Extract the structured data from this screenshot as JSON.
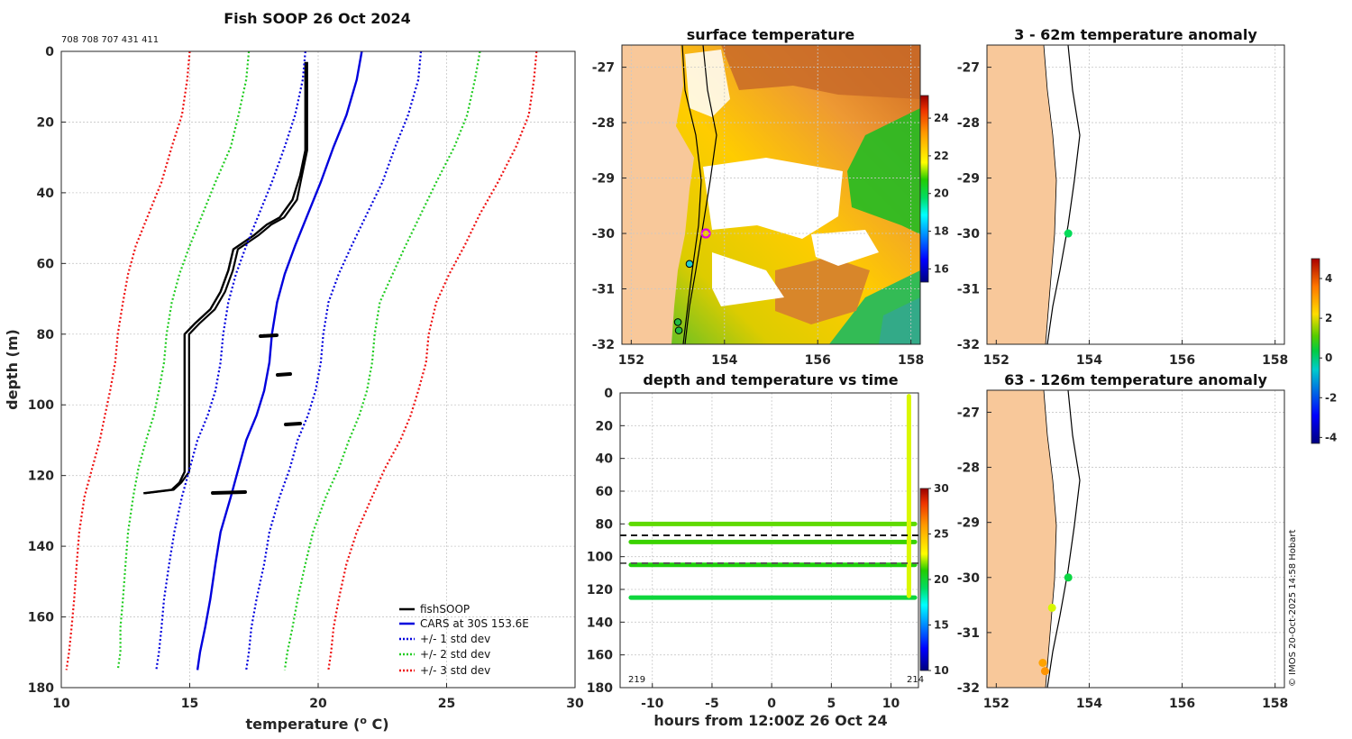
{
  "figure": {
    "main_title": "Fish SOOP 26 Oct 2024",
    "sensor_ids": "708 708 707 431 411",
    "credit": "© IMOS 20-Oct-2025 14:58 Hobart"
  },
  "chart_data": [
    {
      "id": "profile",
      "type": "line",
      "title": "Fish SOOP 26 Oct 2024",
      "xlabel": "temperature (",
      "xlabel_sup": "o",
      "xlabel_tail": " C)",
      "ylabel": "depth (m)",
      "xlim": [
        10,
        30
      ],
      "ylim": [
        0,
        180
      ],
      "xticks": [
        "10",
        "15",
        "20",
        "25",
        "30"
      ],
      "yticks": [
        "0",
        "20",
        "40",
        "60",
        "80",
        "100",
        "120",
        "140",
        "160",
        "180"
      ],
      "series": [
        {
          "name": "fishSOOP",
          "color": "#000000",
          "style": "solid",
          "points": [
            [
              19.5,
              3
            ],
            [
              19.5,
              10
            ],
            [
              19.5,
              20
            ],
            [
              19.5,
              28
            ],
            [
              19.3,
              35
            ],
            [
              19.0,
              42
            ],
            [
              18.5,
              47
            ],
            [
              18.0,
              49
            ],
            [
              17.5,
              52
            ],
            [
              16.7,
              56
            ],
            [
              16.5,
              62
            ],
            [
              16.2,
              68
            ],
            [
              15.8,
              73
            ],
            [
              15.2,
              77
            ],
            [
              14.8,
              80
            ],
            [
              14.8,
              85
            ],
            [
              14.8,
              95
            ],
            [
              14.8,
              110
            ],
            [
              14.8,
              119
            ],
            [
              14.6,
              122
            ],
            [
              14.3,
              124
            ],
            [
              13.2,
              125
            ]
          ]
        },
        {
          "name": "CARS at 30S 153.6E",
          "color": "#0000dd",
          "style": "solid",
          "points": [
            [
              21.7,
              0
            ],
            [
              21.5,
              8
            ],
            [
              21.1,
              18
            ],
            [
              20.6,
              27
            ],
            [
              20.1,
              37
            ],
            [
              19.6,
              46
            ],
            [
              19.1,
              55
            ],
            [
              18.7,
              63
            ],
            [
              18.4,
              71
            ],
            [
              18.2,
              80
            ],
            [
              18.1,
              88
            ],
            [
              17.9,
              96
            ],
            [
              17.6,
              103
            ],
            [
              17.2,
              110
            ],
            [
              16.9,
              118
            ],
            [
              16.6,
              126
            ],
            [
              16.2,
              136
            ],
            [
              16.0,
              145
            ],
            [
              15.8,
              155
            ],
            [
              15.6,
              163
            ],
            [
              15.4,
              170
            ],
            [
              15.3,
              175
            ]
          ]
        },
        {
          "name": "+/- 1 std dev",
          "color": "#0000dd",
          "style": "dotted",
          "points": [
            [
              19.5,
              0
            ],
            [
              19.4,
              8
            ],
            [
              19.1,
              18
            ],
            [
              18.7,
              27
            ],
            [
              18.2,
              37
            ],
            [
              17.7,
              46
            ],
            [
              17.2,
              55
            ],
            [
              16.8,
              63
            ],
            [
              16.5,
              71
            ],
            [
              16.3,
              80
            ],
            [
              16.2,
              88
            ],
            [
              16.0,
              96
            ],
            [
              15.7,
              103
            ],
            [
              15.3,
              110
            ],
            [
              15.0,
              118
            ],
            [
              14.7,
              126
            ],
            [
              14.4,
              136
            ],
            [
              14.2,
              145
            ],
            [
              14.0,
              155
            ],
            [
              13.9,
              163
            ],
            [
              13.8,
              170
            ],
            [
              13.7,
              175
            ]
          ]
        },
        {
          "name": "",
          "color": "#0000dd",
          "style": "dotted",
          "points": [
            [
              24.0,
              0
            ],
            [
              23.9,
              8
            ],
            [
              23.5,
              18
            ],
            [
              23.0,
              27
            ],
            [
              22.5,
              37
            ],
            [
              21.9,
              46
            ],
            [
              21.3,
              55
            ],
            [
              20.8,
              63
            ],
            [
              20.4,
              71
            ],
            [
              20.2,
              80
            ],
            [
              20.1,
              88
            ],
            [
              19.9,
              96
            ],
            [
              19.6,
              103
            ],
            [
              19.2,
              110
            ],
            [
              18.9,
              118
            ],
            [
              18.5,
              126
            ],
            [
              18.1,
              136
            ],
            [
              17.9,
              145
            ],
            [
              17.6,
              155
            ],
            [
              17.4,
              163
            ],
            [
              17.3,
              170
            ],
            [
              17.2,
              175
            ]
          ]
        },
        {
          "name": "+/- 2 std dev",
          "color": "#22cc22",
          "style": "dotted",
          "points": [
            [
              17.3,
              0
            ],
            [
              17.2,
              8
            ],
            [
              16.9,
              18
            ],
            [
              16.6,
              27
            ],
            [
              16.0,
              37
            ],
            [
              15.5,
              46
            ],
            [
              15.0,
              55
            ],
            [
              14.6,
              63
            ],
            [
              14.3,
              71
            ],
            [
              14.1,
              80
            ],
            [
              14.0,
              88
            ],
            [
              13.8,
              96
            ],
            [
              13.6,
              103
            ],
            [
              13.3,
              110
            ],
            [
              13.0,
              118
            ],
            [
              12.8,
              126
            ],
            [
              12.6,
              136
            ],
            [
              12.5,
              145
            ],
            [
              12.4,
              155
            ],
            [
              12.3,
              163
            ],
            [
              12.3,
              170
            ],
            [
              12.2,
              175
            ]
          ]
        },
        {
          "name": "",
          "color": "#22cc22",
          "style": "dotted",
          "points": [
            [
              26.3,
              0
            ],
            [
              26.1,
              8
            ],
            [
              25.8,
              18
            ],
            [
              25.3,
              27
            ],
            [
              24.6,
              37
            ],
            [
              24.0,
              46
            ],
            [
              23.4,
              55
            ],
            [
              22.9,
              63
            ],
            [
              22.4,
              71
            ],
            [
              22.2,
              80
            ],
            [
              22.1,
              88
            ],
            [
              21.9,
              96
            ],
            [
              21.6,
              103
            ],
            [
              21.2,
              110
            ],
            [
              20.8,
              118
            ],
            [
              20.3,
              126
            ],
            [
              19.8,
              136
            ],
            [
              19.5,
              145
            ],
            [
              19.2,
              155
            ],
            [
              19.0,
              163
            ],
            [
              18.8,
              170
            ],
            [
              18.7,
              175
            ]
          ]
        },
        {
          "name": "+/- 3 std dev",
          "color": "#ee1111",
          "style": "dotted",
          "points": [
            [
              15.0,
              0
            ],
            [
              14.9,
              8
            ],
            [
              14.7,
              18
            ],
            [
              14.3,
              27
            ],
            [
              13.9,
              37
            ],
            [
              13.4,
              46
            ],
            [
              12.9,
              55
            ],
            [
              12.6,
              63
            ],
            [
              12.4,
              71
            ],
            [
              12.2,
              80
            ],
            [
              12.1,
              88
            ],
            [
              11.9,
              96
            ],
            [
              11.7,
              103
            ],
            [
              11.5,
              110
            ],
            [
              11.2,
              118
            ],
            [
              10.9,
              126
            ],
            [
              10.7,
              136
            ],
            [
              10.6,
              145
            ],
            [
              10.5,
              155
            ],
            [
              10.4,
              163
            ],
            [
              10.3,
              170
            ],
            [
              10.2,
              175
            ]
          ]
        },
        {
          "name": "",
          "color": "#ee1111",
          "style": "dotted",
          "points": [
            [
              28.5,
              0
            ],
            [
              28.4,
              8
            ],
            [
              28.2,
              18
            ],
            [
              27.7,
              27
            ],
            [
              27.0,
              37
            ],
            [
              26.3,
              46
            ],
            [
              25.7,
              55
            ],
            [
              25.1,
              63
            ],
            [
              24.6,
              71
            ],
            [
              24.3,
              80
            ],
            [
              24.2,
              88
            ],
            [
              23.9,
              96
            ],
            [
              23.6,
              103
            ],
            [
              23.2,
              110
            ],
            [
              22.6,
              118
            ],
            [
              22.1,
              126
            ],
            [
              21.5,
              136
            ],
            [
              21.1,
              145
            ],
            [
              20.8,
              155
            ],
            [
              20.6,
              163
            ],
            [
              20.5,
              170
            ],
            [
              20.4,
              175
            ]
          ]
        }
      ],
      "legend": [
        "fishSOOP",
        "CARS at 30S 153.6E",
        "+/- 1 std dev",
        "+/- 2 std dev",
        "+/- 3 std dev"
      ],
      "legend_position": "bottom-right"
    },
    {
      "id": "sst_map",
      "type": "heatmap",
      "title": "surface temperature",
      "xlim": [
        151.8,
        158.2
      ],
      "ylim": [
        -32,
        -26.6
      ],
      "xticks": [
        "152",
        "154",
        "156",
        "158"
      ],
      "yticks": [
        "-27",
        "-28",
        "-29",
        "-30",
        "-31",
        "-32"
      ],
      "colorbar_ticks": [
        "16",
        "18",
        "20",
        "22",
        "24"
      ],
      "colorbar_range": [
        15.3,
        25.2
      ],
      "stations": [
        [
          153.6,
          -30.0
        ],
        [
          153.25,
          -30.55
        ],
        [
          153.0,
          -31.6
        ],
        [
          153.02,
          -31.75
        ]
      ]
    },
    {
      "id": "time_depth",
      "type": "scatter",
      "title": "depth and temperature vs time",
      "xlabel": "hours from 12:00Z 26 Oct 24",
      "xlim": [
        -12.7,
        12.3
      ],
      "ylim": [
        0,
        180
      ],
      "xticks": [
        "-10",
        "-5",
        "0",
        "5",
        "10"
      ],
      "yticks": [
        "0",
        "20",
        "40",
        "60",
        "80",
        "100",
        "120",
        "140",
        "160",
        "180"
      ],
      "colorbar_ticks": [
        "10",
        "15",
        "20",
        "25",
        "30"
      ],
      "colorbar_range": [
        10,
        30
      ],
      "tows": [
        {
          "depth": 80,
          "temperature": 21.5
        },
        {
          "depth": 91,
          "temperature": 21.2
        },
        {
          "depth": 105,
          "temperature": 20.8
        },
        {
          "depth": 125,
          "temperature": 19.8
        }
      ],
      "reference_lines": [
        87,
        104
      ],
      "corner_labels": [
        "219",
        "214"
      ]
    },
    {
      "id": "anomaly_shallow",
      "type": "scatter",
      "title": "3 - 62m temperature anomaly",
      "xlim": [
        151.8,
        158.2
      ],
      "ylim": [
        -32,
        -26.6
      ],
      "xticks": [
        "152",
        "154",
        "156",
        "158"
      ],
      "yticks": [
        "-27",
        "-28",
        "-29",
        "-30",
        "-31",
        "-32"
      ],
      "points": [
        {
          "lon": 153.55,
          "lat": -30.0,
          "anomaly": 0.0
        }
      ]
    },
    {
      "id": "anomaly_deep",
      "type": "scatter",
      "title": "63 - 126m temperature anomaly",
      "xlim": [
        151.8,
        158.2
      ],
      "ylim": [
        -32,
        -26.6
      ],
      "xticks": [
        "152",
        "154",
        "156",
        "158"
      ],
      "yticks": [
        "-27",
        "-28",
        "-29",
        "-30",
        "-31",
        "-32"
      ],
      "points": [
        {
          "lon": 153.55,
          "lat": -30.0,
          "anomaly": 0.2
        },
        {
          "lon": 153.2,
          "lat": -30.55,
          "anomaly": 1.5
        },
        {
          "lon": 153.0,
          "lat": -31.55,
          "anomaly": 3.0
        },
        {
          "lon": 153.05,
          "lat": -31.7,
          "anomaly": 3.2
        }
      ],
      "colorbar_ticks": [
        "4",
        "2",
        "0",
        "-2",
        "-4"
      ],
      "colorbar_range": [
        -4.3,
        5
      ]
    }
  ],
  "colors": {
    "land": "#f8c89a",
    "axis": "#262626",
    "station_ring": "#e000e0"
  }
}
